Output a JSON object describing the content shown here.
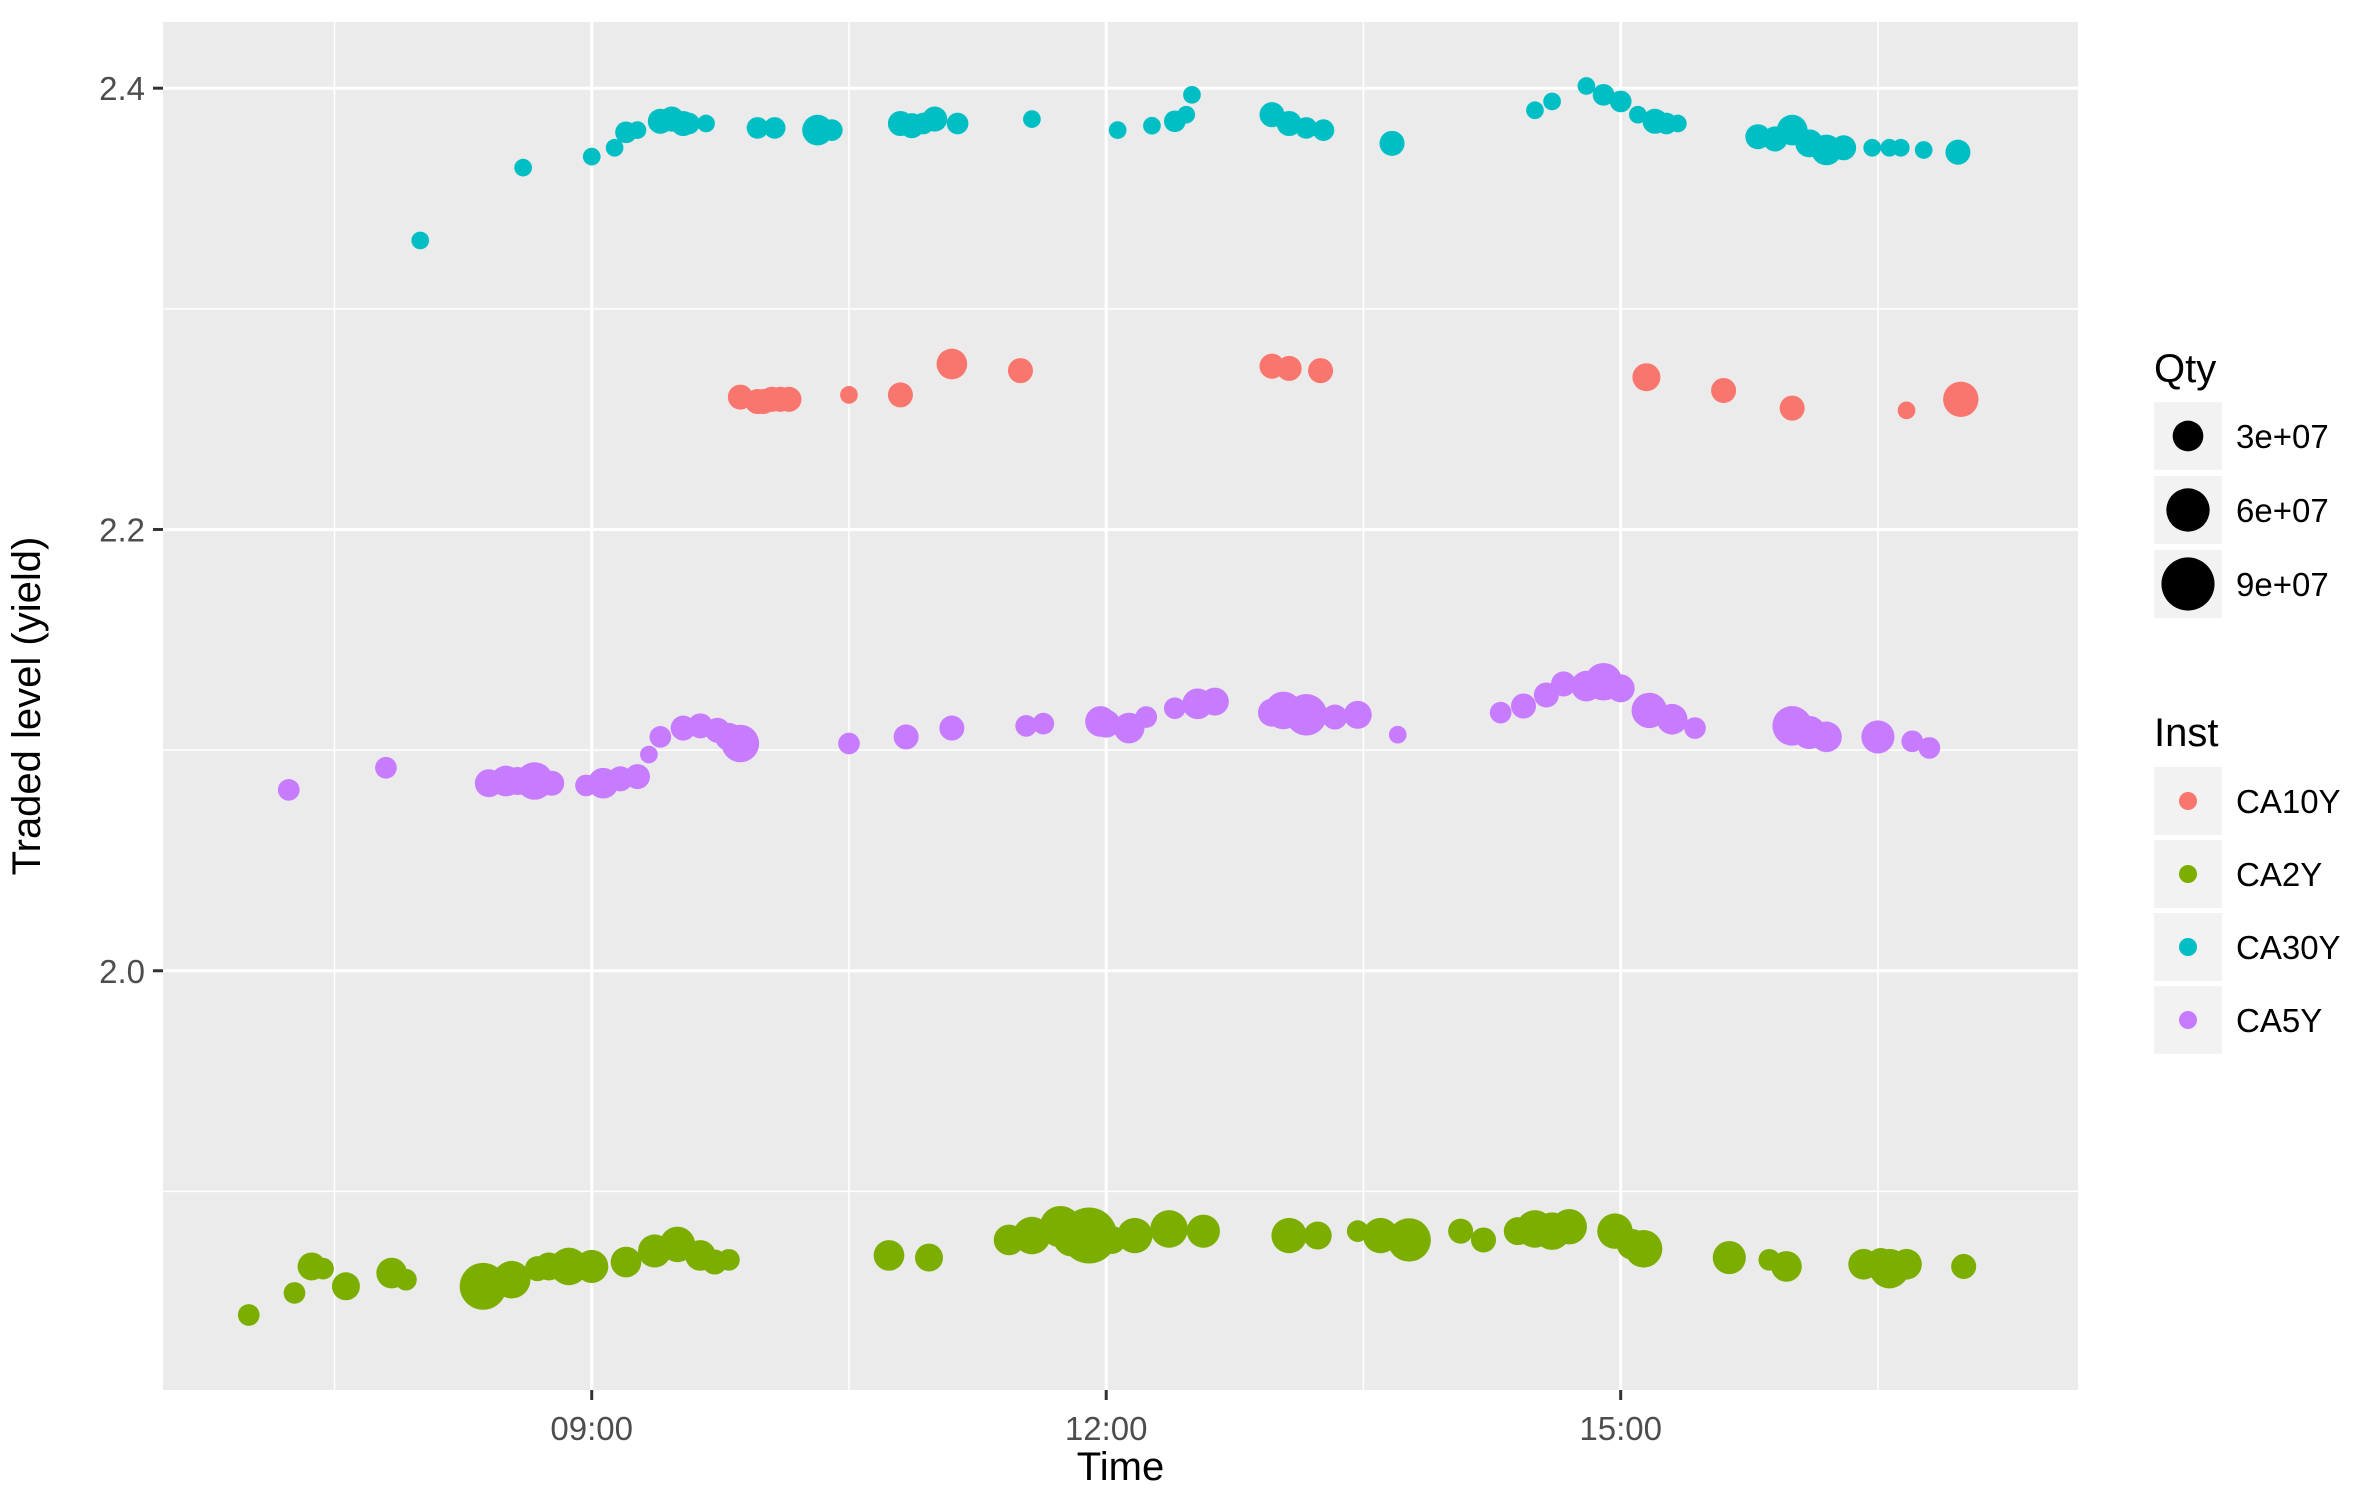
{
  "chart_data": {
    "type": "scatter",
    "xlabel": "Time",
    "ylabel": "Traded level (yield)",
    "xlim": [
      "06:30",
      "17:40"
    ],
    "ylim": [
      1.81,
      2.43
    ],
    "x_ticks": [
      "09:00",
      "12:00",
      "15:00"
    ],
    "y_ticks": [
      "2.0",
      "2.2",
      "2.4"
    ],
    "grid": true,
    "legend_position": "right",
    "size_legend": {
      "title": "Qty",
      "entries": [
        {
          "label": "3e+07",
          "value": 30000000
        },
        {
          "label": "6e+07",
          "value": 60000000
        },
        {
          "label": "9e+07",
          "value": 90000000
        }
      ]
    },
    "color_legend": {
      "title": "Inst",
      "entries": [
        {
          "label": "CA10Y",
          "color": "#F8766D"
        },
        {
          "label": "CA2Y",
          "color": "#7CAE00"
        },
        {
          "label": "CA30Y",
          "color": "#00BFC4"
        },
        {
          "label": "CA5Y",
          "color": "#C77CFF"
        }
      ]
    },
    "series": [
      {
        "name": "CA10Y",
        "color": "#F8766D",
        "points": [
          [
            "09:52",
            2.26,
            20000000
          ],
          [
            "09:58",
            2.258,
            20000000
          ],
          [
            "10:00",
            2.258,
            20000000
          ],
          [
            "10:03",
            2.259,
            20000000
          ],
          [
            "10:06",
            2.259,
            20000000
          ],
          [
            "10:09",
            2.259,
            20000000
          ],
          [
            "10:30",
            2.261,
            10000000
          ],
          [
            "10:48",
            2.261,
            20000000
          ],
          [
            "11:06",
            2.275,
            30000000
          ],
          [
            "11:30",
            2.272,
            20000000
          ],
          [
            "12:58",
            2.274,
            20000000
          ],
          [
            "13:04",
            2.273,
            20000000
          ],
          [
            "13:15",
            2.272,
            20000000
          ],
          [
            "15:09",
            2.269,
            25000000
          ],
          [
            "15:36",
            2.263,
            20000000
          ],
          [
            "16:00",
            2.255,
            20000000
          ],
          [
            "16:40",
            2.254,
            10000000
          ],
          [
            "16:59",
            2.259,
            40000000
          ]
        ]
      },
      {
        "name": "CA2Y",
        "color": "#7CAE00",
        "points": [
          [
            "07:00",
            1.844,
            15000000
          ],
          [
            "07:16",
            1.854,
            15000000
          ],
          [
            "07:22",
            1.866,
            25000000
          ],
          [
            "07:26",
            1.865,
            15000000
          ],
          [
            "07:34",
            1.857,
            25000000
          ],
          [
            "07:50",
            1.863,
            30000000
          ],
          [
            "07:55",
            1.86,
            15000000
          ],
          [
            "08:22",
            1.857,
            70000000
          ],
          [
            "08:32",
            1.86,
            45000000
          ],
          [
            "08:41",
            1.865,
            20000000
          ],
          [
            "08:45",
            1.866,
            25000000
          ],
          [
            "08:52",
            1.866,
            45000000
          ],
          [
            "09:00",
            1.866,
            35000000
          ],
          [
            "09:12",
            1.868,
            30000000
          ],
          [
            "09:22",
            1.873,
            35000000
          ],
          [
            "09:30",
            1.876,
            40000000
          ],
          [
            "09:38",
            1.871,
            30000000
          ],
          [
            "09:43",
            1.868,
            20000000
          ],
          [
            "09:48",
            1.869,
            15000000
          ],
          [
            "10:44",
            1.871,
            30000000
          ],
          [
            "10:58",
            1.87,
            25000000
          ],
          [
            "11:26",
            1.878,
            30000000
          ],
          [
            "11:34",
            1.88,
            45000000
          ],
          [
            "11:44",
            1.884,
            55000000
          ],
          [
            "11:48",
            1.879,
            45000000
          ],
          [
            "11:54",
            1.88,
            100000000
          ],
          [
            "12:02",
            1.878,
            25000000
          ],
          [
            "12:10",
            1.88,
            40000000
          ],
          [
            "12:22",
            1.883,
            45000000
          ],
          [
            "12:34",
            1.882,
            35000000
          ],
          [
            "13:04",
            1.88,
            40000000
          ],
          [
            "13:14",
            1.88,
            25000000
          ],
          [
            "13:28",
            1.882,
            15000000
          ],
          [
            "13:36",
            1.88,
            40000000
          ],
          [
            "13:46",
            1.878,
            60000000
          ],
          [
            "14:04",
            1.882,
            20000000
          ],
          [
            "14:12",
            1.878,
            20000000
          ],
          [
            "14:24",
            1.882,
            25000000
          ],
          [
            "14:30",
            1.883,
            45000000
          ],
          [
            "14:36",
            1.882,
            45000000
          ],
          [
            "14:42",
            1.884,
            40000000
          ],
          [
            "14:58",
            1.882,
            40000000
          ],
          [
            "15:04",
            1.876,
            30000000
          ],
          [
            "15:08",
            1.874,
            45000000
          ],
          [
            "15:38",
            1.87,
            35000000
          ],
          [
            "15:52",
            1.869,
            15000000
          ],
          [
            "15:58",
            1.866,
            30000000
          ],
          [
            "16:25",
            1.867,
            30000000
          ],
          [
            "16:31",
            1.868,
            25000000
          ],
          [
            "16:34",
            1.865,
            50000000
          ],
          [
            "16:40",
            1.867,
            30000000
          ],
          [
            "17:00",
            1.866,
            20000000
          ]
        ]
      },
      {
        "name": "CA30Y",
        "color": "#00BFC4",
        "points": [
          [
            "08:00",
            2.331,
            10000000
          ],
          [
            "08:36",
            2.364,
            10000000
          ],
          [
            "09:00",
            2.369,
            10000000
          ],
          [
            "09:08",
            2.373,
            10000000
          ],
          [
            "09:12",
            2.38,
            15000000
          ],
          [
            "09:16",
            2.381,
            10000000
          ],
          [
            "09:24",
            2.385,
            20000000
          ],
          [
            "09:28",
            2.386,
            20000000
          ],
          [
            "09:32",
            2.384,
            20000000
          ],
          [
            "09:34",
            2.384,
            15000000
          ],
          [
            "09:40",
            2.384,
            10000000
          ],
          [
            "09:58",
            2.382,
            15000000
          ],
          [
            "10:04",
            2.382,
            15000000
          ],
          [
            "10:19",
            2.381,
            30000000
          ],
          [
            "10:24",
            2.381,
            15000000
          ],
          [
            "10:48",
            2.384,
            20000000
          ],
          [
            "10:52",
            2.383,
            20000000
          ],
          [
            "10:56",
            2.384,
            15000000
          ],
          [
            "11:00",
            2.386,
            20000000
          ],
          [
            "11:08",
            2.384,
            15000000
          ],
          [
            "11:34",
            2.386,
            10000000
          ],
          [
            "12:04",
            2.381,
            10000000
          ],
          [
            "12:16",
            2.383,
            10000000
          ],
          [
            "12:24",
            2.385,
            15000000
          ],
          [
            "12:28",
            2.388,
            10000000
          ],
          [
            "12:30",
            2.397,
            10000000
          ],
          [
            "12:58",
            2.388,
            20000000
          ],
          [
            "13:04",
            2.384,
            20000000
          ],
          [
            "13:10",
            2.382,
            15000000
          ],
          [
            "13:16",
            2.381,
            15000000
          ],
          [
            "13:40",
            2.375,
            20000000
          ],
          [
            "14:30",
            2.39,
            10000000
          ],
          [
            "14:36",
            2.394,
            10000000
          ],
          [
            "14:48",
            2.401,
            10000000
          ],
          [
            "14:54",
            2.397,
            15000000
          ],
          [
            "15:00",
            2.394,
            15000000
          ],
          [
            "15:06",
            2.388,
            10000000
          ],
          [
            "15:12",
            2.385,
            20000000
          ],
          [
            "15:16",
            2.384,
            15000000
          ],
          [
            "15:20",
            2.384,
            10000000
          ],
          [
            "15:48",
            2.378,
            20000000
          ],
          [
            "15:54",
            2.377,
            20000000
          ],
          [
            "16:00",
            2.381,
            30000000
          ],
          [
            "16:06",
            2.375,
            25000000
          ],
          [
            "16:12",
            2.372,
            30000000
          ],
          [
            "16:18",
            2.373,
            20000000
          ],
          [
            "16:28",
            2.373,
            10000000
          ],
          [
            "16:34",
            2.373,
            10000000
          ],
          [
            "16:38",
            2.373,
            10000000
          ],
          [
            "16:46",
            2.372,
            10000000
          ],
          [
            "16:58",
            2.371,
            20000000
          ]
        ]
      },
      {
        "name": "CA5Y",
        "color": "#C77CFF",
        "points": [
          [
            "07:14",
            2.082,
            15000000
          ],
          [
            "07:48",
            2.092,
            15000000
          ],
          [
            "08:24",
            2.085,
            25000000
          ],
          [
            "08:30",
            2.086,
            30000000
          ],
          [
            "08:34",
            2.086,
            25000000
          ],
          [
            "08:40",
            2.086,
            45000000
          ],
          [
            "08:46",
            2.085,
            20000000
          ],
          [
            "08:58",
            2.084,
            15000000
          ],
          [
            "09:04",
            2.085,
            30000000
          ],
          [
            "09:10",
            2.087,
            20000000
          ],
          [
            "09:16",
            2.088,
            20000000
          ],
          [
            "09:20",
            2.098,
            10000000
          ],
          [
            "09:24",
            2.106,
            15000000
          ],
          [
            "09:32",
            2.11,
            20000000
          ],
          [
            "09:38",
            2.111,
            20000000
          ],
          [
            "09:44",
            2.109,
            20000000
          ],
          [
            "09:48",
            2.106,
            25000000
          ],
          [
            "09:52",
            2.103,
            45000000
          ],
          [
            "10:30",
            2.103,
            15000000
          ],
          [
            "10:50",
            2.106,
            20000000
          ],
          [
            "11:06",
            2.11,
            20000000
          ],
          [
            "11:32",
            2.111,
            15000000
          ],
          [
            "11:38",
            2.112,
            15000000
          ],
          [
            "11:58",
            2.113,
            30000000
          ],
          [
            "12:00",
            2.112,
            25000000
          ],
          [
            "12:08",
            2.11,
            30000000
          ],
          [
            "12:14",
            2.115,
            15000000
          ],
          [
            "12:24",
            2.119,
            15000000
          ],
          [
            "12:32",
            2.121,
            30000000
          ],
          [
            "12:38",
            2.122,
            25000000
          ],
          [
            "12:58",
            2.117,
            25000000
          ],
          [
            "13:02",
            2.118,
            45000000
          ],
          [
            "13:10",
            2.116,
            55000000
          ],
          [
            "13:20",
            2.115,
            20000000
          ],
          [
            "13:28",
            2.116,
            25000000
          ],
          [
            "13:42",
            2.107,
            10000000
          ],
          [
            "14:18",
            2.117,
            15000000
          ],
          [
            "14:26",
            2.12,
            20000000
          ],
          [
            "14:34",
            2.125,
            20000000
          ],
          [
            "14:40",
            2.13,
            20000000
          ],
          [
            "14:48",
            2.129,
            30000000
          ],
          [
            "14:54",
            2.131,
            45000000
          ],
          [
            "15:00",
            2.128,
            25000000
          ],
          [
            "15:10",
            2.118,
            40000000
          ],
          [
            "15:18",
            2.114,
            30000000
          ],
          [
            "15:26",
            2.11,
            15000000
          ],
          [
            "16:00",
            2.111,
            50000000
          ],
          [
            "16:06",
            2.108,
            35000000
          ],
          [
            "16:12",
            2.106,
            30000000
          ],
          [
            "16:30",
            2.106,
            35000000
          ],
          [
            "16:42",
            2.104,
            15000000
          ],
          [
            "16:48",
            2.101,
            15000000
          ]
        ]
      }
    ]
  }
}
